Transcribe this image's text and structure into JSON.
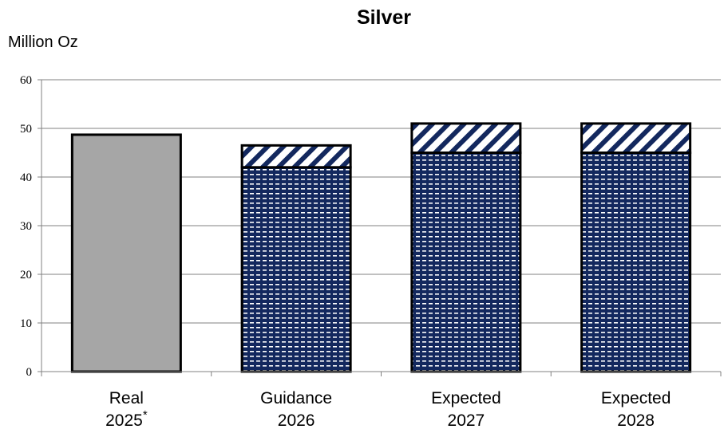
{
  "chart_data": {
    "type": "bar",
    "title": "Silver",
    "unit_label": "Million Oz",
    "ylim": [
      0,
      60
    ],
    "yticks": [
      "0",
      "10",
      "20",
      "30",
      "40",
      "50",
      "60"
    ],
    "categories": [
      {
        "line1": "Real",
        "line2": "2025",
        "superscript": "*"
      },
      {
        "line1": "Guidance",
        "line2": "2026",
        "superscript": ""
      },
      {
        "line1": "Expected",
        "line2": "2027",
        "superscript": ""
      },
      {
        "line1": "Expected",
        "line2": "2028",
        "superscript": ""
      }
    ],
    "series": [
      {
        "values": [
          48.7,
          0,
          0,
          0
        ],
        "color": "#a6a6a6",
        "pattern": "solid"
      },
      {
        "values": [
          0,
          42,
          45,
          45
        ],
        "color": "#13285e",
        "pattern": "dashed-dots"
      },
      {
        "values": [
          0,
          4.5,
          6,
          6
        ],
        "color": "#13285e",
        "pattern": "diagonal-stripes"
      }
    ],
    "grid": true,
    "legend": "none"
  }
}
